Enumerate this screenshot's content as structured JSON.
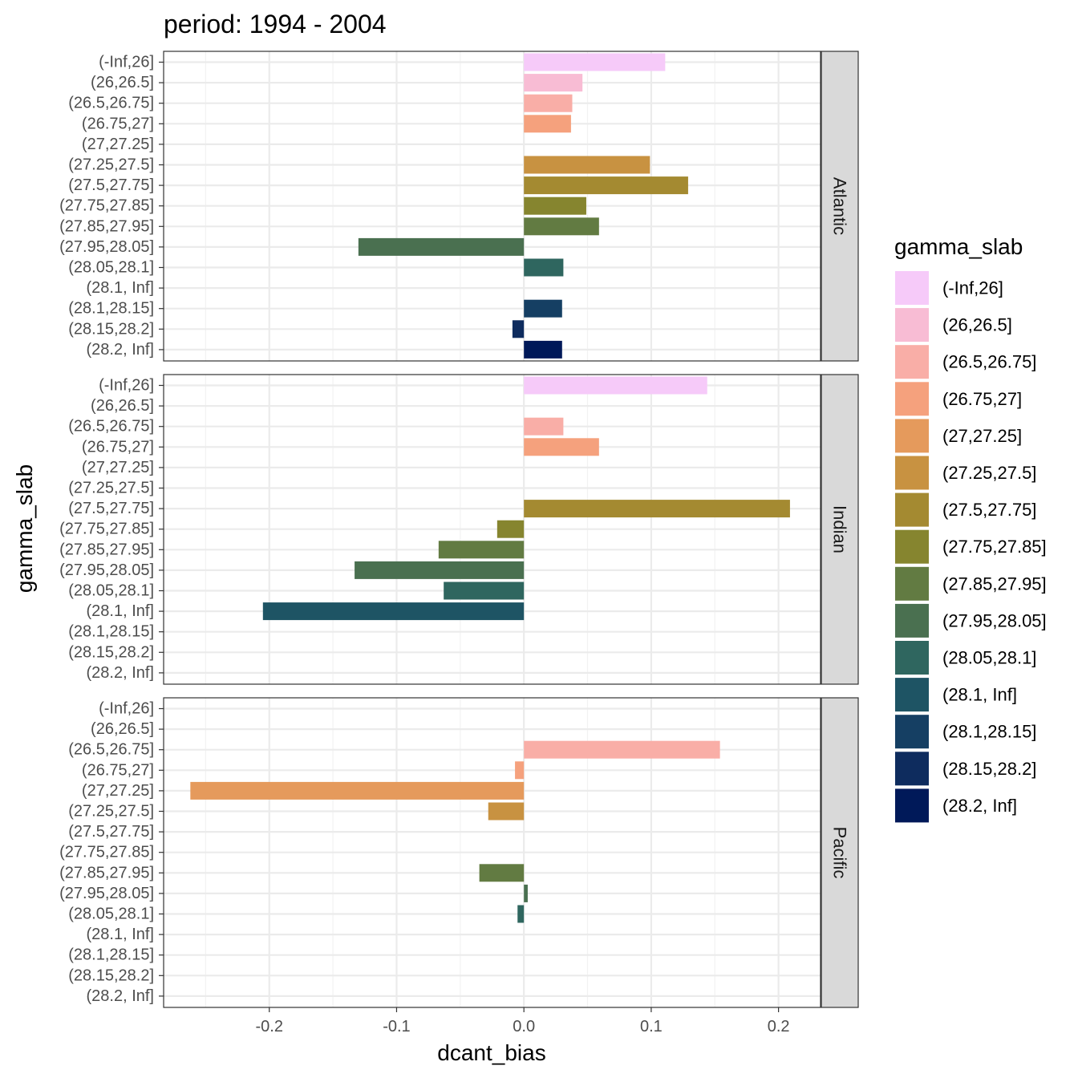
{
  "chart_data": {
    "type": "bar",
    "orientation": "horizontal",
    "title": "period: 1994 - 2004",
    "xlabel": "dcant_bias",
    "ylabel": "gamma_slab",
    "xlim": [
      -0.283,
      0.233
    ],
    "x_ticks": [
      -0.2,
      -0.1,
      0.0,
      0.1,
      0.2
    ],
    "x_tick_labels": [
      "-0.2",
      "-0.1",
      "0.0",
      "0.1",
      "0.2"
    ],
    "grid": true,
    "legend_position": "right",
    "legend_title": "gamma_slab",
    "categories": [
      "(-Inf,26]",
      "(26,26.5]",
      "(26.5,26.75]",
      "(26.75,27]",
      "(27,27.25]",
      "(27.25,27.5]",
      "(27.5,27.75]",
      "(27.75,27.85]",
      "(27.85,27.95]",
      "(27.95,28.05]",
      "(28.05,28.1]",
      "(28.1, Inf]",
      "(28.1,28.15]",
      "(28.15,28.2]",
      "(28.2, Inf]"
    ],
    "colors": [
      "#F6CAF9",
      "#F8BCD4",
      "#F9AEA7",
      "#F5A17D",
      "#E59A5C",
      "#C89241",
      "#A48A31",
      "#86852F",
      "#627B42",
      "#4A7050",
      "#2F665F",
      "#1E5464",
      "#153F63",
      "#0E2C5E",
      "#001959"
    ],
    "panels": [
      {
        "name": "Atlantic",
        "values": [
          0.111,
          0.046,
          0.038,
          0.037,
          null,
          0.099,
          0.129,
          0.049,
          0.059,
          -0.13,
          0.031,
          null,
          0.03,
          -0.009,
          0.03
        ]
      },
      {
        "name": "Indian",
        "values": [
          0.144,
          null,
          0.031,
          0.059,
          null,
          null,
          0.209,
          -0.021,
          -0.067,
          -0.133,
          -0.063,
          -0.205,
          null,
          null,
          null
        ]
      },
      {
        "name": "Pacific",
        "values": [
          null,
          null,
          0.154,
          -0.007,
          -0.262,
          -0.028,
          null,
          null,
          -0.035,
          0.003,
          -0.005,
          null,
          null,
          null,
          null
        ]
      }
    ]
  }
}
